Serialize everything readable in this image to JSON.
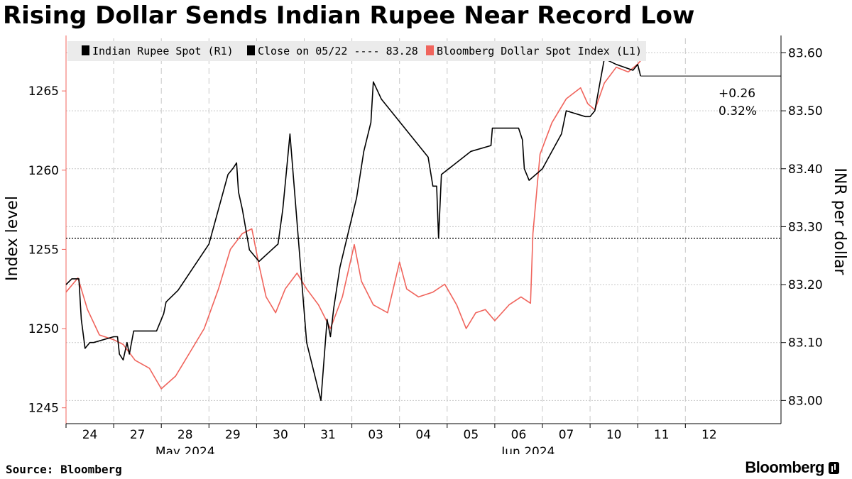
{
  "header": {
    "title": "Rising Dollar Sends Indian Rupee Near Record Low"
  },
  "footer": {
    "source": "Source: Bloomberg",
    "brand": "Bloomberg"
  },
  "legend": {
    "rupee": "Indian Rupee Spot  (R1)",
    "close": "Close on 05/22 ---- 83.28",
    "dxy": "Bloomberg Dollar Spot Index  (L1)"
  },
  "annotation": {
    "change_abs": "+0.26",
    "change_pct": "0.32%"
  },
  "colors": {
    "rupee": "#000000",
    "dxy": "#f0645c",
    "grid": "#c8c8c8",
    "refline": "#222222"
  },
  "chart_data": {
    "type": "line",
    "title": "Rising Dollar Sends Indian Rupee Near Record Low",
    "ylabel_left": "Index level",
    "ylabel_right": "INR per dollar",
    "ylim_left": [
      1244,
      1268.5
    ],
    "ylim_right": [
      82.96,
      83.63
    ],
    "yticks_left": [
      1245,
      1250,
      1255,
      1260,
      1265
    ],
    "yticks_right": [
      "83.00",
      "83.10",
      "83.20",
      "83.30",
      "83.40",
      "83.50",
      "83.60"
    ],
    "x_days": [
      "24",
      "27",
      "28",
      "29",
      "30",
      "31",
      "03",
      "04",
      "05",
      "06",
      "07",
      "10",
      "11",
      "12"
    ],
    "month_labels": [
      {
        "label": "May 2024",
        "day_index": 2.5
      },
      {
        "label": "Jun 2024",
        "day_index": 9.7
      }
    ],
    "reference_line": {
      "label": "Close on 05/22",
      "value": 83.28,
      "axis": "right"
    },
    "series": [
      {
        "name": "Indian Rupee Spot",
        "axis": "right",
        "points": [
          [
            0.0,
            83.2
          ],
          [
            0.12,
            83.21
          ],
          [
            0.27,
            83.21
          ],
          [
            0.32,
            83.14
          ],
          [
            0.4,
            83.09
          ],
          [
            0.5,
            83.1
          ],
          [
            0.58,
            83.1
          ],
          [
            1.0,
            83.11
          ],
          [
            1.08,
            83.11
          ],
          [
            1.12,
            83.08
          ],
          [
            1.2,
            83.07
          ],
          [
            1.28,
            83.1
          ],
          [
            1.33,
            83.08
          ],
          [
            1.42,
            83.12
          ],
          [
            1.9,
            83.12
          ],
          [
            2.05,
            83.15
          ],
          [
            2.1,
            83.17
          ],
          [
            2.35,
            83.19
          ],
          [
            3.0,
            83.27
          ],
          [
            3.4,
            83.39
          ],
          [
            3.5,
            83.4
          ],
          [
            3.58,
            83.41
          ],
          [
            3.62,
            83.36
          ],
          [
            3.7,
            83.33
          ],
          [
            3.85,
            83.26
          ],
          [
            4.05,
            83.24
          ],
          [
            4.45,
            83.27
          ],
          [
            4.55,
            83.33
          ],
          [
            4.62,
            83.39
          ],
          [
            4.7,
            83.46
          ],
          [
            5.05,
            83.1
          ],
          [
            5.35,
            83.0
          ],
          [
            5.48,
            83.14
          ],
          [
            5.55,
            83.11
          ],
          [
            5.62,
            83.16
          ],
          [
            5.75,
            83.23
          ],
          [
            6.1,
            83.35
          ],
          [
            6.25,
            83.43
          ],
          [
            6.4,
            83.48
          ],
          [
            6.45,
            83.55
          ],
          [
            6.62,
            83.52
          ],
          [
            7.6,
            83.42
          ],
          [
            7.7,
            83.37
          ],
          [
            7.78,
            83.37
          ],
          [
            7.82,
            83.28
          ],
          [
            7.88,
            83.39
          ],
          [
            8.5,
            83.43
          ],
          [
            8.92,
            83.44
          ],
          [
            8.95,
            83.47
          ],
          [
            9.5,
            83.47
          ],
          [
            9.58,
            83.45
          ],
          [
            9.62,
            83.4
          ],
          [
            9.72,
            83.38
          ],
          [
            10.0,
            83.4
          ],
          [
            10.4,
            83.46
          ],
          [
            10.5,
            83.5
          ],
          [
            10.9,
            83.49
          ],
          [
            11.0,
            83.49
          ],
          [
            11.1,
            83.5
          ],
          [
            11.3,
            83.59
          ],
          [
            11.55,
            83.58
          ],
          [
            11.9,
            83.57
          ],
          [
            12.0,
            83.58
          ],
          [
            12.06,
            83.56
          ]
        ]
      },
      {
        "name": "Bloomberg Dollar Spot Index",
        "axis": "left",
        "points": [
          [
            0.0,
            1252.3
          ],
          [
            0.25,
            1253.2
          ],
          [
            0.45,
            1251.2
          ],
          [
            0.7,
            1249.6
          ],
          [
            1.0,
            1249.3
          ],
          [
            1.2,
            1249.0
          ],
          [
            1.45,
            1248.0
          ],
          [
            1.75,
            1247.5
          ],
          [
            2.0,
            1246.2
          ],
          [
            2.3,
            1247.0
          ],
          [
            2.6,
            1248.5
          ],
          [
            2.9,
            1250.0
          ],
          [
            3.2,
            1252.5
          ],
          [
            3.45,
            1255.0
          ],
          [
            3.7,
            1256.0
          ],
          [
            3.9,
            1256.3
          ],
          [
            4.05,
            1254.0
          ],
          [
            4.2,
            1252.0
          ],
          [
            4.4,
            1251.0
          ],
          [
            4.6,
            1252.5
          ],
          [
            4.85,
            1253.5
          ],
          [
            5.05,
            1252.5
          ],
          [
            5.3,
            1251.5
          ],
          [
            5.55,
            1250.0
          ],
          [
            5.8,
            1252.0
          ],
          [
            6.05,
            1255.3
          ],
          [
            6.2,
            1253.0
          ],
          [
            6.45,
            1251.5
          ],
          [
            6.75,
            1251.0
          ],
          [
            7.0,
            1254.2
          ],
          [
            7.15,
            1252.5
          ],
          [
            7.4,
            1252.0
          ],
          [
            7.7,
            1252.3
          ],
          [
            7.95,
            1252.8
          ],
          [
            8.2,
            1251.5
          ],
          [
            8.4,
            1250.0
          ],
          [
            8.6,
            1251.0
          ],
          [
            8.8,
            1251.2
          ],
          [
            9.0,
            1250.5
          ],
          [
            9.3,
            1251.5
          ],
          [
            9.55,
            1252.0
          ],
          [
            9.75,
            1251.6
          ],
          [
            9.8,
            1256.0
          ],
          [
            9.95,
            1261.0
          ],
          [
            10.2,
            1263.0
          ],
          [
            10.5,
            1264.5
          ],
          [
            10.8,
            1265.2
          ],
          [
            10.95,
            1264.2
          ],
          [
            11.1,
            1263.8
          ],
          [
            11.3,
            1265.5
          ],
          [
            11.55,
            1266.5
          ],
          [
            11.8,
            1266.2
          ],
          [
            12.0,
            1266.7
          ],
          [
            12.06,
            1266.9
          ]
        ]
      }
    ]
  }
}
